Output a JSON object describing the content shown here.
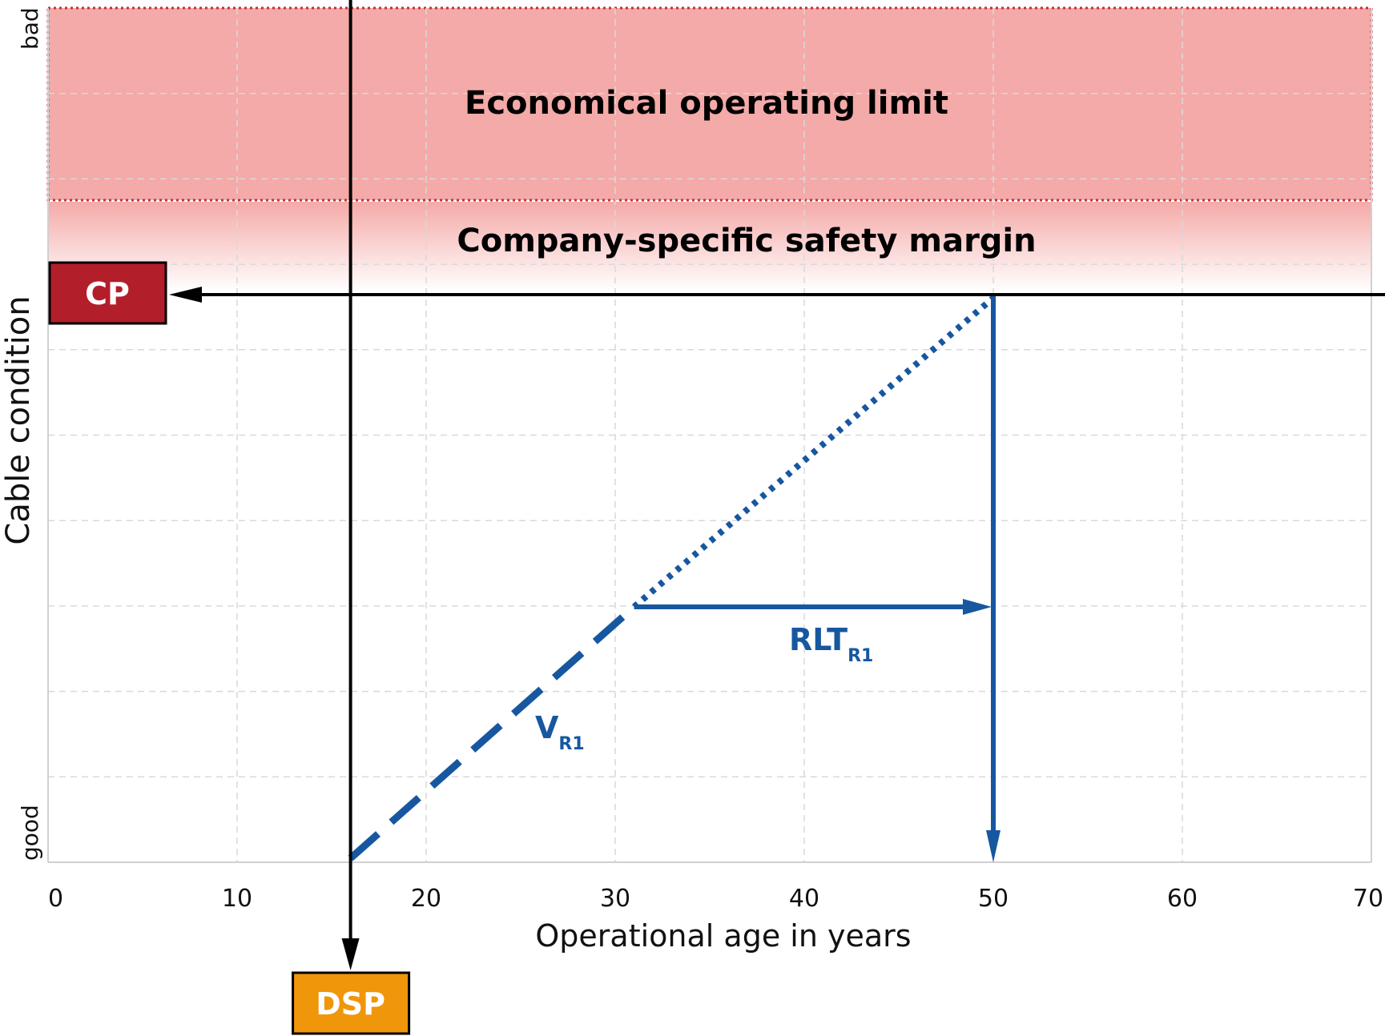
{
  "y_axis": {
    "label": "Cable condition",
    "top_label": "bad",
    "bottom_label": "good"
  },
  "x_axis": {
    "label": "Operational age in years",
    "ticks": [
      "0",
      "10",
      "20",
      "30",
      "40",
      "50",
      "60",
      "70"
    ],
    "range": [
      0,
      70
    ]
  },
  "bands": {
    "limit_label": "Economical operating limit",
    "margin_label": "Company-specific safety margin"
  },
  "markers": {
    "cp_label": "CP",
    "dsp_label": "DSP",
    "velocity_label": "V",
    "velocity_sub": "R1",
    "rlt_label": "RLT",
    "rlt_sub": "R1"
  },
  "values": {
    "dsp_age": 16,
    "current_age": 31,
    "end_age": 50
  },
  "colors": {
    "limit_fill": "#f4aaa8",
    "limit_border": "#c0303a",
    "cp_box": "#b21e2a",
    "dsp_box": "#f0960a",
    "blue": "#1757a0",
    "grid": "#d9d9d9"
  }
}
